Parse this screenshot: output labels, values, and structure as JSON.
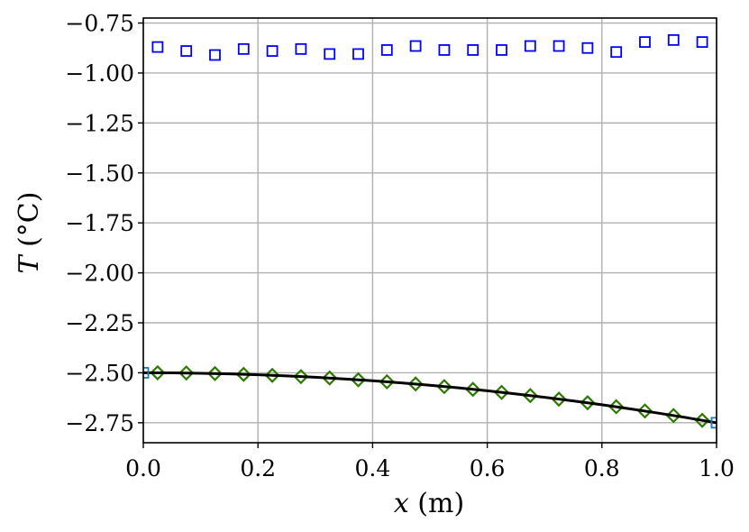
{
  "chart_data": {
    "type": "scatter",
    "title": "",
    "xlabel_var": "x",
    "xlabel_unit": " (m)",
    "ylabel_var": "T",
    "ylabel_unit": " (°C)",
    "xlim": [
      0.0,
      1.0
    ],
    "ylim": [
      -2.85,
      -0.725
    ],
    "grid": true,
    "legend": "none",
    "x_ticks": [
      0.0,
      0.2,
      0.4,
      0.6,
      0.8,
      1.0
    ],
    "x_tick_labels": [
      "0.0",
      "0.2",
      "0.4",
      "0.6",
      "0.8",
      "1.0"
    ],
    "y_ticks": [
      -0.75,
      -1.0,
      -1.25,
      -1.5,
      -1.75,
      -2.0,
      -2.25,
      -2.5,
      -2.75
    ],
    "y_tick_labels": [
      "−0.75",
      "−1.00",
      "−1.25",
      "−1.50",
      "−1.75",
      "−2.00",
      "−2.25",
      "−2.50",
      "−2.75"
    ],
    "series": [
      {
        "marker": "square-open",
        "color": "#0000ff",
        "x": [
          0.025,
          0.075,
          0.125,
          0.175,
          0.225,
          0.275,
          0.325,
          0.375,
          0.425,
          0.475,
          0.525,
          0.575,
          0.625,
          0.675,
          0.725,
          0.775,
          0.825,
          0.875,
          0.925,
          0.975
        ],
        "y": [
          -0.87,
          -0.89,
          -0.91,
          -0.88,
          -0.89,
          -0.88,
          -0.905,
          -0.905,
          -0.885,
          -0.865,
          -0.885,
          -0.885,
          -0.885,
          -0.865,
          -0.865,
          -0.875,
          -0.895,
          -0.845,
          -0.835,
          -0.845
        ]
      },
      {
        "marker": "square-open",
        "color": "#1f77b4",
        "x": [
          0.0,
          1.0
        ],
        "y": [
          -2.5,
          -2.75
        ]
      },
      {
        "marker": "diamond-open",
        "color": "#2d7a00",
        "x": [
          0.025,
          0.075,
          0.125,
          0.175,
          0.225,
          0.275,
          0.325,
          0.375,
          0.425,
          0.475,
          0.525,
          0.575,
          0.625,
          0.675,
          0.725,
          0.775,
          0.825,
          0.875,
          0.925,
          0.975
        ],
        "y": [
          -2.5,
          -2.501,
          -2.504,
          -2.508,
          -2.513,
          -2.519,
          -2.526,
          -2.535,
          -2.545,
          -2.556,
          -2.569,
          -2.583,
          -2.598,
          -2.614,
          -2.632,
          -2.65,
          -2.67,
          -2.691,
          -2.714,
          -2.738
        ]
      },
      {
        "marker": "line",
        "color": "#000000",
        "x": [
          0.0,
          0.05,
          0.1,
          0.15,
          0.2,
          0.25,
          0.3,
          0.35,
          0.4,
          0.45,
          0.5,
          0.55,
          0.6,
          0.65,
          0.7,
          0.75,
          0.8,
          0.85,
          0.9,
          0.95,
          1.0
        ],
        "y": [
          -2.5,
          -2.5006,
          -2.5025,
          -2.5056,
          -2.51,
          -2.5156,
          -2.5225,
          -2.5306,
          -2.54,
          -2.5506,
          -2.5625,
          -2.5756,
          -2.59,
          -2.6056,
          -2.6225,
          -2.6406,
          -2.66,
          -2.6806,
          -2.7025,
          -2.7256,
          -2.75
        ]
      }
    ]
  }
}
